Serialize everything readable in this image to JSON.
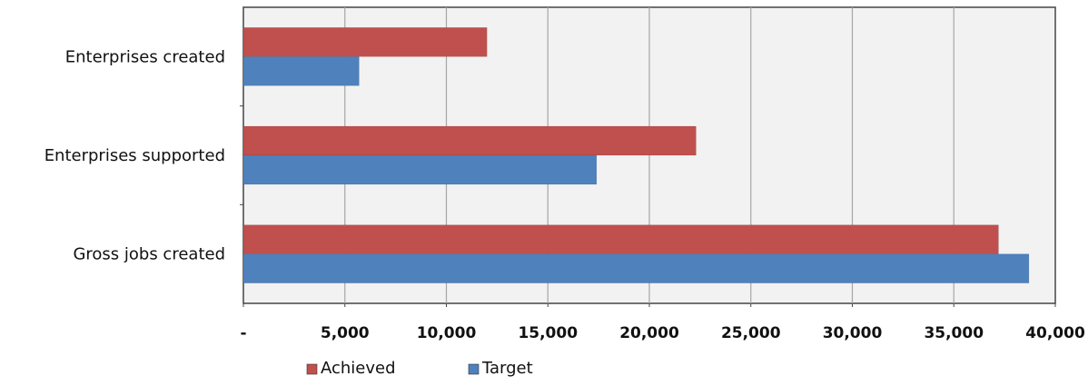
{
  "chart_data": {
    "type": "bar",
    "orientation": "horizontal",
    "categories": [
      "Enterprises created",
      "Enterprises supported",
      "Gross jobs created"
    ],
    "series": [
      {
        "name": "Achieved",
        "color": "#c0504d",
        "values": [
          12000,
          22300,
          37200
        ]
      },
      {
        "name": "Target",
        "color": "#4f81bd",
        "values": [
          5700,
          17400,
          38700
        ]
      }
    ],
    "xlim": [
      0,
      40000
    ],
    "xticks": [
      0,
      5000,
      10000,
      15000,
      20000,
      25000,
      30000,
      35000,
      40000
    ],
    "xtick_labels": [
      "-",
      "5,000",
      "10,000",
      "15,000",
      "20,000",
      "25,000",
      "30,000",
      "35,000",
      "40,000"
    ],
    "grid": true,
    "legend_position": "bottom",
    "plot_background": "#f2f2f2",
    "title": "",
    "xlabel": "",
    "ylabel": ""
  }
}
